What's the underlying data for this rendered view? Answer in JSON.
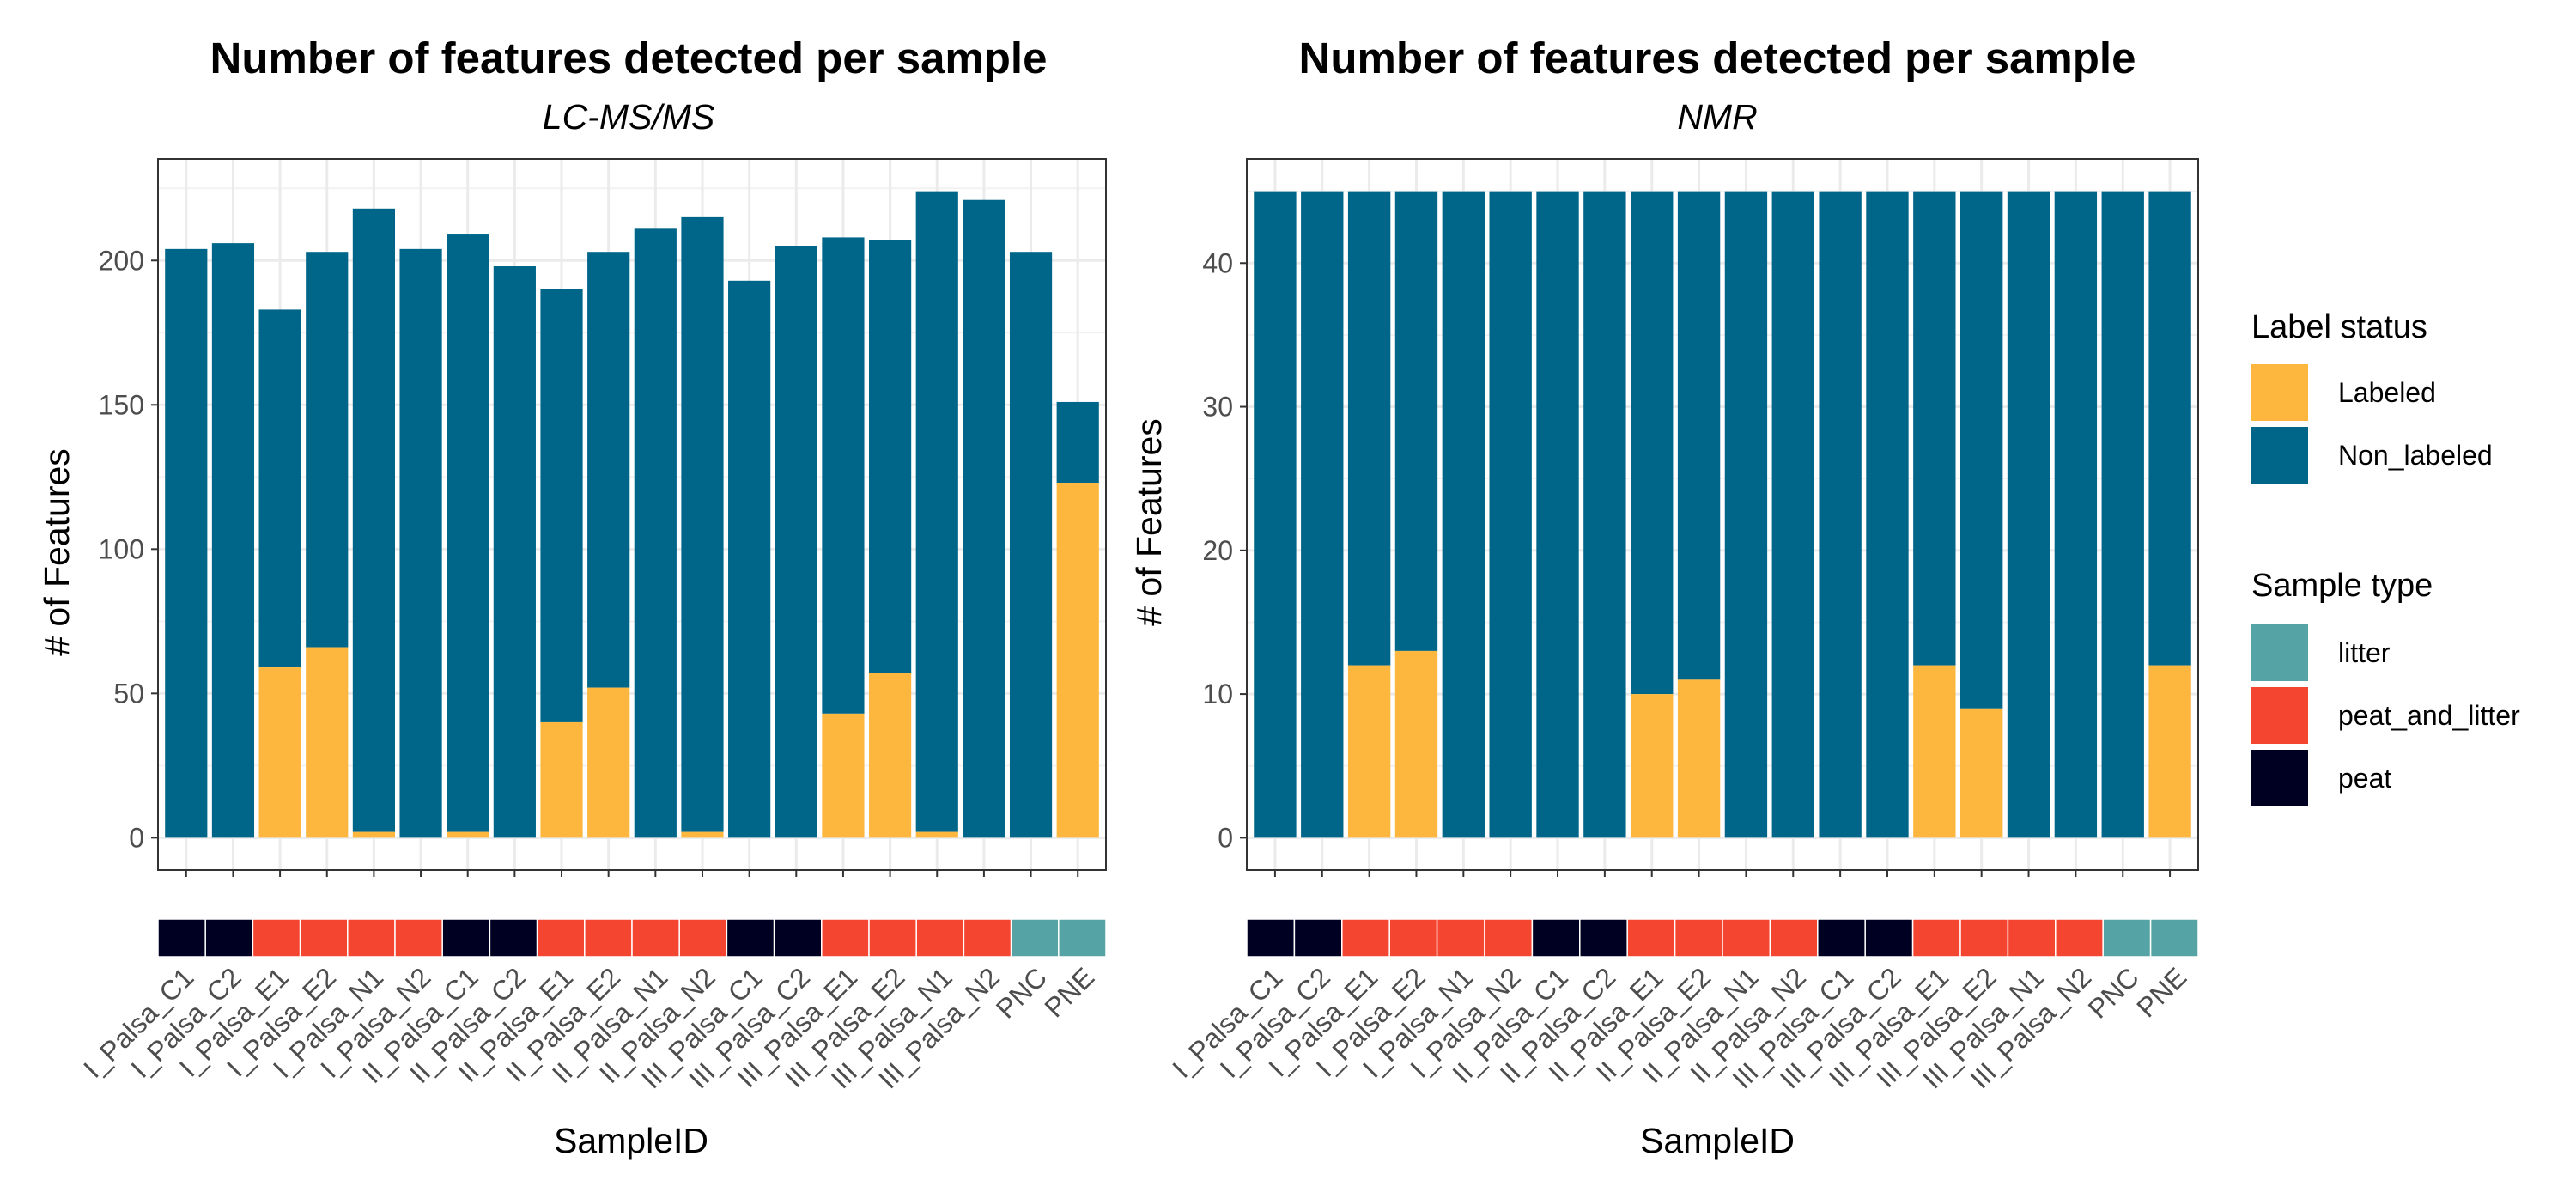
{
  "colors": {
    "Labeled": "#fdb73e",
    "Non_labeled": "#006689",
    "litter": "#55a3a5",
    "peat_and_litter": "#f44530",
    "peat": "#000022"
  },
  "chart_data": [
    {
      "type": "bar",
      "stacked": true,
      "title": "Number of features detected per sample",
      "subtitle": "LC-MS/MS",
      "xlabel": "SampleID",
      "ylabel": "# of Features",
      "ylim": [
        0,
        224
      ],
      "yticks": [
        0,
        50,
        100,
        150,
        200
      ],
      "grid": true,
      "categories": [
        "I_Palsa_C1",
        "I_Palsa_C2",
        "I_Palsa_E1",
        "I_Palsa_E2",
        "I_Palsa_N1",
        "I_Palsa_N2",
        "II_Palsa_C1",
        "II_Palsa_C2",
        "II_Palsa_E1",
        "II_Palsa_E2",
        "II_Palsa_N1",
        "II_Palsa_N2",
        "III_Palsa_C1",
        "III_Palsa_C2",
        "III_Palsa_E1",
        "III_Palsa_E2",
        "III_Palsa_N1",
        "III_Palsa_N2",
        "PNC",
        "PNE"
      ],
      "sample_type": [
        "peat",
        "peat",
        "peat_and_litter",
        "peat_and_litter",
        "peat_and_litter",
        "peat_and_litter",
        "peat",
        "peat",
        "peat_and_litter",
        "peat_and_litter",
        "peat_and_litter",
        "peat_and_litter",
        "peat",
        "peat",
        "peat_and_litter",
        "peat_and_litter",
        "peat_and_litter",
        "peat_and_litter",
        "litter",
        "litter"
      ],
      "series": [
        {
          "name": "Labeled",
          "values": [
            0,
            0,
            59,
            66,
            2,
            0,
            2,
            0,
            40,
            52,
            0,
            2,
            0,
            0,
            43,
            57,
            2,
            0,
            0,
            123
          ]
        },
        {
          "name": "Non_labeled",
          "values": [
            204,
            206,
            124,
            137,
            216,
            204,
            207,
            198,
            150,
            151,
            211,
            213,
            193,
            205,
            165,
            150,
            222,
            221,
            203,
            28
          ]
        }
      ]
    },
    {
      "type": "bar",
      "stacked": true,
      "title": "Number of features detected per sample",
      "subtitle": "NMR",
      "xlabel": "SampleID",
      "ylabel": "# of Features",
      "ylim": [
        0,
        45
      ],
      "yticks": [
        0,
        10,
        20,
        30,
        40
      ],
      "grid": true,
      "categories": [
        "I_Palsa_C1",
        "I_Palsa_C2",
        "I_Palsa_E1",
        "I_Palsa_E2",
        "I_Palsa_N1",
        "I_Palsa_N2",
        "II_Palsa_C1",
        "II_Palsa_C2",
        "II_Palsa_E1",
        "II_Palsa_E2",
        "II_Palsa_N1",
        "II_Palsa_N2",
        "III_Palsa_C1",
        "III_Palsa_C2",
        "III_Palsa_E1",
        "III_Palsa_E2",
        "III_Palsa_N1",
        "III_Palsa_N2",
        "PNC",
        "PNE"
      ],
      "sample_type": [
        "peat",
        "peat",
        "peat_and_litter",
        "peat_and_litter",
        "peat_and_litter",
        "peat_and_litter",
        "peat",
        "peat",
        "peat_and_litter",
        "peat_and_litter",
        "peat_and_litter",
        "peat_and_litter",
        "peat",
        "peat",
        "peat_and_litter",
        "peat_and_litter",
        "peat_and_litter",
        "peat_and_litter",
        "litter",
        "litter"
      ],
      "series": [
        {
          "name": "Labeled",
          "values": [
            0,
            0,
            12,
            13,
            0,
            0,
            0,
            0,
            10,
            11,
            0,
            0,
            0,
            0,
            12,
            9,
            0,
            0,
            0,
            12
          ]
        },
        {
          "name": "Non_labeled",
          "values": [
            45,
            45,
            33,
            32,
            45,
            45,
            45,
            45,
            35,
            34,
            45,
            45,
            45,
            45,
            33,
            36,
            45,
            45,
            45,
            33
          ]
        }
      ]
    }
  ],
  "legend": {
    "label_status": {
      "title": "Label status",
      "items": [
        {
          "key": "Labeled",
          "label": "Labeled"
        },
        {
          "key": "Non_labeled",
          "label": "Non_labeled"
        }
      ]
    },
    "sample_type": {
      "title": "Sample type",
      "items": [
        {
          "key": "litter",
          "label": "litter"
        },
        {
          "key": "peat_and_litter",
          "label": "peat_and_litter"
        },
        {
          "key": "peat",
          "label": "peat"
        }
      ]
    }
  }
}
